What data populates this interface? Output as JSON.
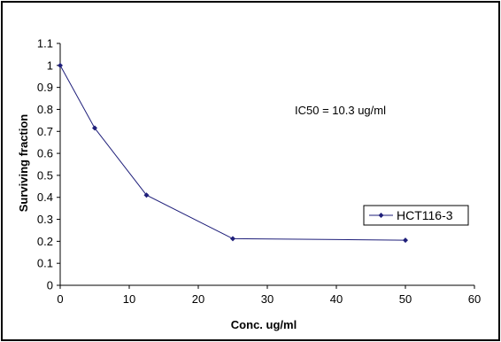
{
  "chart_data": {
    "type": "line",
    "title": "",
    "xlabel": "Conc. ug/ml",
    "ylabel": "Surviving fraction",
    "xlim": [
      0,
      60
    ],
    "ylim": [
      0,
      1.1
    ],
    "x_ticks": [
      "0",
      "10",
      "20",
      "30",
      "40",
      "50",
      "60"
    ],
    "y_ticks": [
      "0",
      "0.1",
      "0.2",
      "0.3",
      "0.4",
      "0.5",
      "0.6",
      "0.7",
      "0.8",
      "0.9",
      "1",
      "1.1"
    ],
    "grid": false,
    "legend_position": "right",
    "annotation": "IC50 = 10.3 ug/ml",
    "series": [
      {
        "name": "HCT116-3",
        "color": "#1f1f7a",
        "x": [
          0,
          5,
          12.5,
          25,
          50
        ],
        "y": [
          1.0,
          0.715,
          0.41,
          0.212,
          0.205
        ]
      }
    ]
  }
}
